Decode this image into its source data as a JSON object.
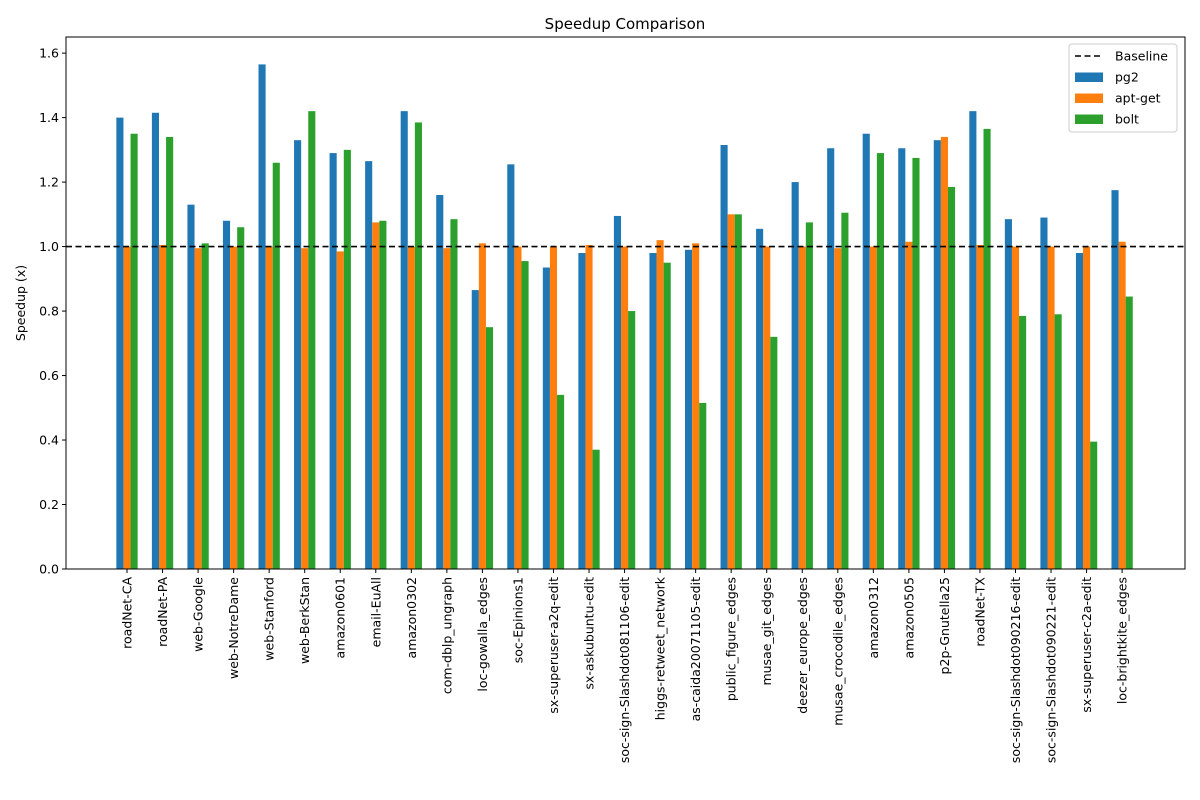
{
  "chart_data": {
    "type": "bar",
    "title": "Speedup Comparison",
    "xlabel": "",
    "ylabel": "Speedup (x)",
    "ylim": [
      0,
      1.65
    ],
    "yticks": [
      0.0,
      0.2,
      0.4,
      0.6,
      0.8,
      1.0,
      1.2,
      1.4,
      1.6
    ],
    "ytick_labels": [
      "0.0",
      "0.2",
      "0.4",
      "0.6",
      "0.8",
      "1.0",
      "1.2",
      "1.4",
      "1.6"
    ],
    "grid": false,
    "legend_position": "top-right",
    "baseline": {
      "name": "Baseline",
      "value": 1.0,
      "style": "dashed",
      "color": "#000000"
    },
    "categories": [
      "roadNet-CA",
      "roadNet-PA",
      "web-Google",
      "web-NotreDame",
      "web-Stanford",
      "web-BerkStan",
      "amazon0601",
      "email-EuAll",
      "amazon0302",
      "com-dblp_ungraph",
      "loc-gowalla_edges",
      "soc-Epinions1",
      "sx-superuser-a2q-edit",
      "sx-askubuntu-edit",
      "soc-sign-Slashdot081106-edit",
      "higgs-retweet_network",
      "as-caida20071105-edit",
      "public_figure_edges",
      "musae_git_edges",
      "deezer_europe_edges",
      "musae_crocodile_edges",
      "amazon0312",
      "amazon0505",
      "p2p-Gnutella25",
      "roadNet-TX",
      "soc-sign-Slashdot090216-edit",
      "soc-sign-Slashdot090221-edit",
      "sx-superuser-c2a-edit",
      "loc-brightkite_edges"
    ],
    "series": [
      {
        "name": "pg2",
        "color": "#1f77b4",
        "values": [
          1.4,
          1.415,
          1.13,
          1.08,
          1.565,
          1.33,
          1.29,
          1.265,
          1.42,
          1.16,
          0.865,
          1.255,
          0.935,
          0.98,
          1.095,
          0.98,
          0.99,
          1.315,
          1.055,
          1.2,
          1.305,
          1.35,
          1.305,
          1.33,
          1.42,
          1.085,
          1.09,
          0.98,
          1.175
        ]
      },
      {
        "name": "apt-get",
        "color": "#ff7f0e",
        "values": [
          1.0,
          1.005,
          0.995,
          1.0,
          1.0,
          0.995,
          0.985,
          1.075,
          1.0,
          0.995,
          1.01,
          1.0,
          1.0,
          1.005,
          1.0,
          1.02,
          1.01,
          1.1,
          1.0,
          1.0,
          0.995,
          1.0,
          1.015,
          1.34,
          1.005,
          1.0,
          1.0,
          1.0,
          1.015
        ]
      },
      {
        "name": "bolt",
        "color": "#2ca02c",
        "values": [
          1.35,
          1.34,
          1.01,
          1.06,
          1.26,
          1.42,
          1.3,
          1.08,
          1.385,
          1.085,
          0.75,
          0.955,
          0.54,
          0.37,
          0.8,
          0.95,
          0.515,
          1.1,
          0.72,
          1.075,
          1.105,
          1.29,
          1.275,
          1.185,
          1.365,
          0.785,
          0.79,
          0.395,
          0.845
        ]
      }
    ]
  }
}
